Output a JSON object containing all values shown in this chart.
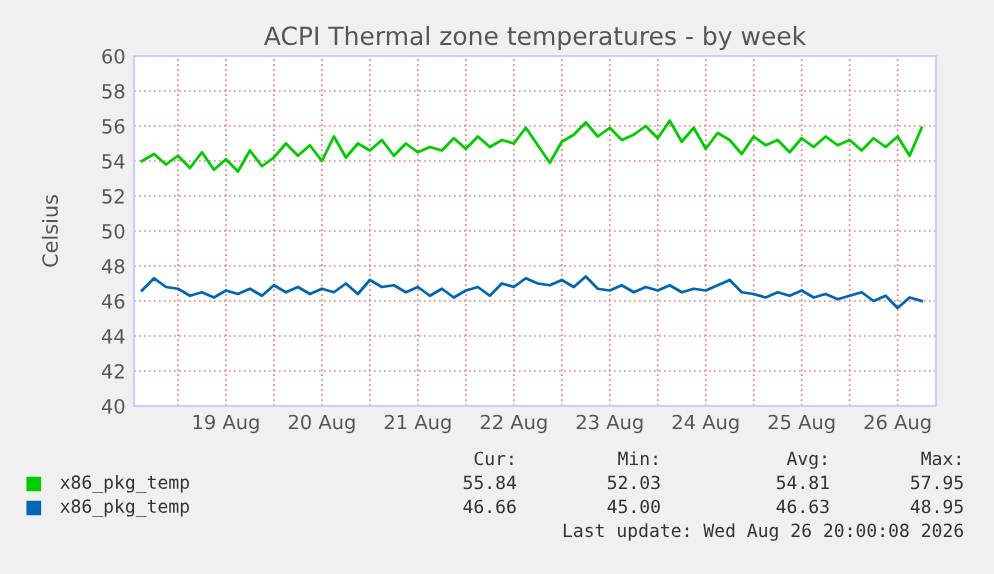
{
  "chart_data": {
    "type": "line",
    "title": "ACPI Thermal zone temperatures - by week",
    "ylabel": "Celsius",
    "x": [
      "2026-08-18T15:00",
      "2026-08-18T18:00",
      "2026-08-18T21:00",
      "2026-08-19T00:00",
      "2026-08-19T03:00",
      "2026-08-19T06:00",
      "2026-08-19T09:00",
      "2026-08-19T12:00",
      "2026-08-19T15:00",
      "2026-08-19T18:00",
      "2026-08-19T21:00",
      "2026-08-20T00:00",
      "2026-08-20T03:00",
      "2026-08-20T06:00",
      "2026-08-20T09:00",
      "2026-08-20T12:00",
      "2026-08-20T15:00",
      "2026-08-20T18:00",
      "2026-08-20T21:00",
      "2026-08-21T00:00",
      "2026-08-21T03:00",
      "2026-08-21T06:00",
      "2026-08-21T09:00",
      "2026-08-21T12:00",
      "2026-08-21T15:00",
      "2026-08-21T18:00",
      "2026-08-21T21:00",
      "2026-08-22T00:00",
      "2026-08-22T03:00",
      "2026-08-22T06:00",
      "2026-08-22T09:00",
      "2026-08-22T12:00",
      "2026-08-22T15:00",
      "2026-08-22T18:00",
      "2026-08-22T21:00",
      "2026-08-23T00:00",
      "2026-08-23T03:00",
      "2026-08-23T06:00",
      "2026-08-23T09:00",
      "2026-08-23T12:00",
      "2026-08-23T15:00",
      "2026-08-23T18:00",
      "2026-08-23T21:00",
      "2026-08-24T00:00",
      "2026-08-24T03:00",
      "2026-08-24T06:00",
      "2026-08-24T09:00",
      "2026-08-24T12:00",
      "2026-08-24T15:00",
      "2026-08-24T18:00",
      "2026-08-24T21:00",
      "2026-08-25T00:00",
      "2026-08-25T03:00",
      "2026-08-25T06:00",
      "2026-08-25T09:00",
      "2026-08-25T12:00",
      "2026-08-25T15:00",
      "2026-08-25T18:00",
      "2026-08-25T21:00",
      "2026-08-26T00:00",
      "2026-08-26T03:00",
      "2026-08-26T06:00",
      "2026-08-26T09:00",
      "2026-08-26T12:00",
      "2026-08-26T15:00",
      "2026-08-26T18:00"
    ],
    "series": [
      {
        "name": "x86_pkg_temp",
        "color": "#00cc00",
        "values": [
          54.0,
          54.4,
          53.8,
          54.3,
          53.6,
          54.5,
          53.5,
          54.1,
          53.4,
          54.6,
          53.7,
          54.2,
          55.0,
          54.3,
          54.9,
          54.0,
          55.4,
          54.2,
          55.0,
          54.6,
          55.2,
          54.3,
          55.0,
          54.5,
          54.8,
          54.6,
          55.3,
          54.7,
          55.4,
          54.8,
          55.2,
          55.0,
          55.9,
          54.9,
          53.9,
          55.1,
          55.5,
          56.2,
          55.4,
          55.9,
          55.2,
          55.5,
          56.0,
          55.3,
          56.3,
          55.1,
          55.9,
          54.7,
          55.6,
          55.2,
          54.4,
          55.4,
          54.9,
          55.2,
          54.5,
          55.3,
          54.8,
          55.4,
          54.9,
          55.2,
          54.6,
          55.3,
          54.8,
          55.4,
          54.3,
          55.9
        ]
      },
      {
        "name": "x86_pkg_temp",
        "color": "#0066b3",
        "values": [
          46.6,
          47.3,
          46.8,
          46.7,
          46.3,
          46.5,
          46.2,
          46.6,
          46.4,
          46.7,
          46.3,
          46.9,
          46.5,
          46.8,
          46.4,
          46.7,
          46.5,
          47.0,
          46.4,
          47.2,
          46.8,
          46.9,
          46.5,
          46.8,
          46.3,
          46.7,
          46.2,
          46.6,
          46.8,
          46.3,
          47.0,
          46.8,
          47.3,
          47.0,
          46.9,
          47.2,
          46.8,
          47.4,
          46.7,
          46.6,
          46.9,
          46.5,
          46.8,
          46.6,
          46.9,
          46.5,
          46.7,
          46.6,
          46.9,
          47.2,
          46.5,
          46.4,
          46.2,
          46.5,
          46.3,
          46.6,
          46.2,
          46.4,
          46.1,
          46.3,
          46.5,
          46.0,
          46.3,
          45.6,
          46.2,
          46.0
        ]
      }
    ],
    "xlim": [
      "2026-08-18T13:00",
      "2026-08-26T21:36"
    ],
    "xticks": [
      {
        "value": "2026-08-19T00:00",
        "label": null
      },
      {
        "value": "2026-08-19T12:00",
        "label": "19 Aug"
      },
      {
        "value": "2026-08-20T00:00",
        "label": null
      },
      {
        "value": "2026-08-20T12:00",
        "label": "20 Aug"
      },
      {
        "value": "2026-08-21T00:00",
        "label": null
      },
      {
        "value": "2026-08-21T12:00",
        "label": "21 Aug"
      },
      {
        "value": "2026-08-22T00:00",
        "label": null
      },
      {
        "value": "2026-08-22T12:00",
        "label": "22 Aug"
      },
      {
        "value": "2026-08-23T00:00",
        "label": null
      },
      {
        "value": "2026-08-23T12:00",
        "label": "23 Aug"
      },
      {
        "value": "2026-08-24T00:00",
        "label": null
      },
      {
        "value": "2026-08-24T12:00",
        "label": "24 Aug"
      },
      {
        "value": "2026-08-25T00:00",
        "label": null
      },
      {
        "value": "2026-08-25T12:00",
        "label": "25 Aug"
      },
      {
        "value": "2026-08-26T00:00",
        "label": null
      },
      {
        "value": "2026-08-26T12:00",
        "label": "26 Aug"
      }
    ],
    "ylim": [
      40,
      60
    ],
    "yticks": [
      40,
      42,
      44,
      46,
      48,
      50,
      52,
      54,
      56,
      58,
      60
    ],
    "grid": true,
    "legend": "bottom",
    "annotations": [
      "Cur:",
      "Min:",
      "Avg:",
      "Max:",
      "55.84",
      "52.03",
      "54.81",
      "57.95",
      "46.66",
      "45.00",
      "46.63",
      "48.95",
      "Last update: Wed Aug 26 20:00:08 2026"
    ]
  }
}
